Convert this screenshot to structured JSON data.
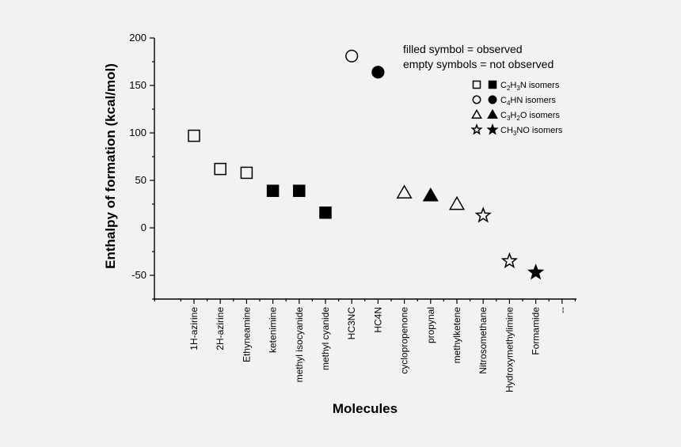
{
  "chart_data": {
    "type": "scatter",
    "title": "",
    "xlabel": "Molecules",
    "ylabel": "Enthalpy of formation (kcal/mol)",
    "ylim": [
      -75,
      200
    ],
    "yticks": [
      200,
      150,
      100,
      50,
      0,
      -50
    ],
    "grid": false,
    "categories": [
      "1H-azirine",
      "2H-azirine",
      "Ethyneamine",
      "ketenimine",
      "methyl isocyanide",
      "methyl cyanide",
      "HC3NC",
      "HC4N",
      "cyclopropenone",
      "propynal",
      "methylketene",
      "Nitrosomethane",
      "Hydroxymethylimine",
      "Formamide",
      "--"
    ],
    "points": [
      {
        "category": "1H-azirine",
        "y": 97,
        "group": "C2H3N",
        "observed": false
      },
      {
        "category": "2H-azirine",
        "y": 62,
        "group": "C2H3N",
        "observed": false
      },
      {
        "category": "Ethyneamine",
        "y": 58,
        "group": "C2H3N",
        "observed": false
      },
      {
        "category": "ketenimine",
        "y": 39,
        "group": "C2H3N",
        "observed": true
      },
      {
        "category": "methyl isocyanide",
        "y": 39,
        "group": "C2H3N",
        "observed": true
      },
      {
        "category": "methyl cyanide",
        "y": 16,
        "group": "C2H3N",
        "observed": true
      },
      {
        "category": "HC3NC",
        "y": 181,
        "group": "C4HN",
        "observed": false
      },
      {
        "category": "HC4N",
        "y": 164,
        "group": "C4HN",
        "observed": true
      },
      {
        "category": "cyclopropenone",
        "y": 37,
        "group": "C3H2O",
        "observed": false
      },
      {
        "category": "propynal",
        "y": 34,
        "group": "C3H2O",
        "observed": true
      },
      {
        "category": "methylketene",
        "y": 25,
        "group": "C3H2O",
        "observed": false
      },
      {
        "category": "Nitrosomethane",
        "y": 13,
        "group": "CH3NO",
        "observed": false
      },
      {
        "category": "Hydroxymethylimine",
        "y": -35,
        "group": "CH3NO",
        "observed": false
      },
      {
        "category": "Formamide",
        "y": -47,
        "group": "CH3NO",
        "observed": true
      }
    ],
    "annotations": [
      "filled symbol = observed",
      "empty symbols = not observed"
    ],
    "legend": {
      "placement": "top-right",
      "entries": [
        {
          "group": "C2H3N",
          "marker": "square",
          "label": [
            "C",
            "2",
            "H",
            "3",
            "N isomers"
          ]
        },
        {
          "group": "C4HN",
          "marker": "circle",
          "label": [
            "C",
            "4",
            "HN isomers"
          ]
        },
        {
          "group": "C3H2O",
          "marker": "triangle",
          "label": [
            "C",
            "3",
            "H",
            "2",
            "O isomers"
          ]
        },
        {
          "group": "CH3NO",
          "marker": "star",
          "label": [
            "CH",
            "3",
            "NO isomers"
          ]
        }
      ]
    },
    "colors": {
      "marker": "#000000",
      "background": "#f2f2f2"
    }
  }
}
